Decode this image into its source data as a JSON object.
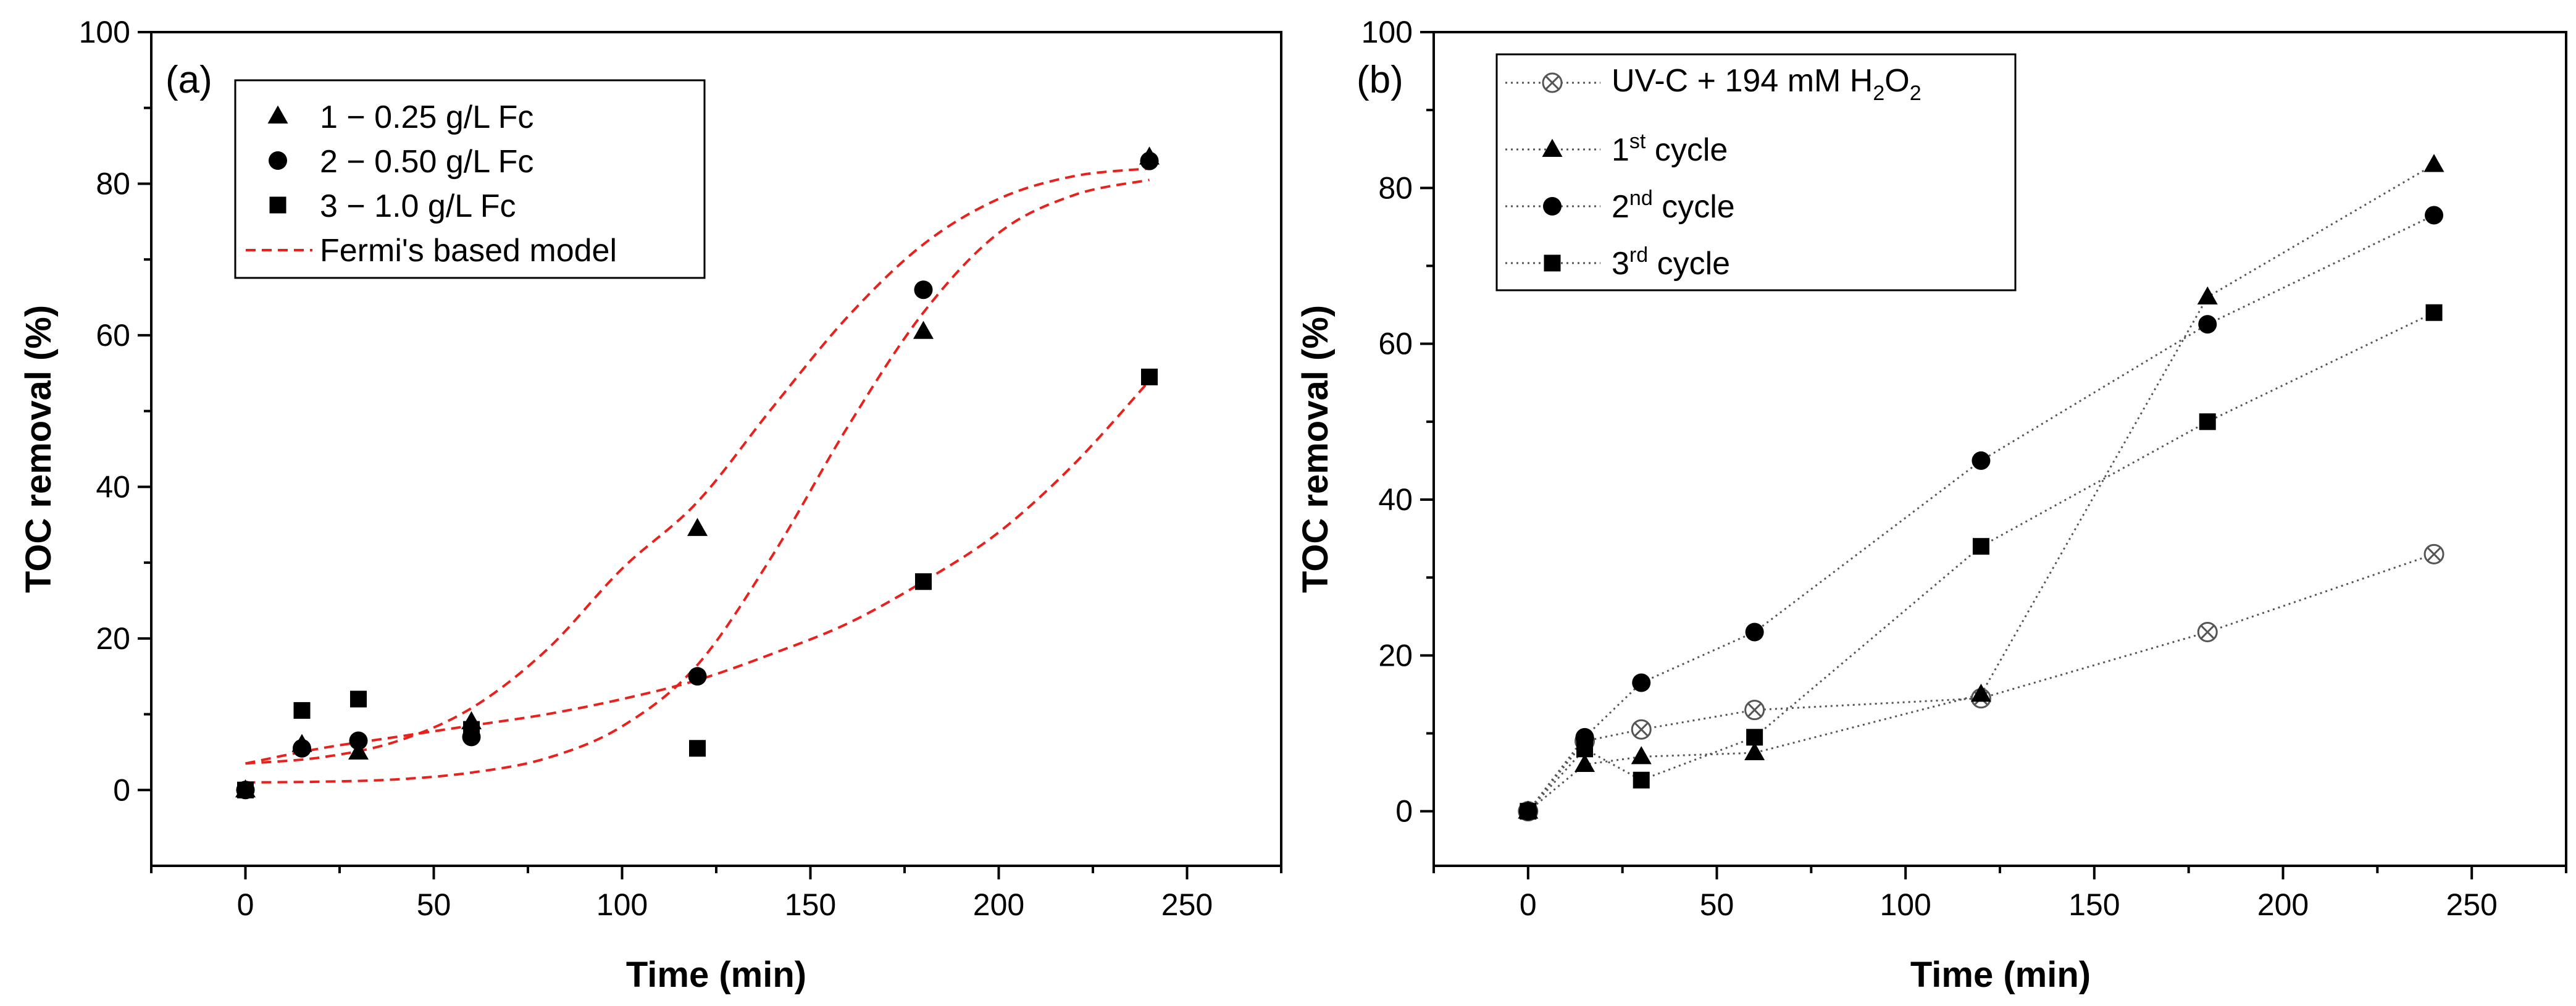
{
  "chart_data": [
    {
      "type": "scatter",
      "panel_label": "(a)",
      "xlabel": "Time (min)",
      "ylabel": "TOC removal (%)",
      "xlim": [
        -25,
        275
      ],
      "ylim": [
        -10,
        100
      ],
      "xticks": [
        0,
        50,
        100,
        150,
        200,
        250
      ],
      "yticks": [
        0,
        20,
        40,
        60,
        80,
        100
      ],
      "legend_position": "top-left",
      "series": [
        {
          "name": "1 − 0.25 g/L Fc",
          "marker": "triangle",
          "x": [
            0,
            15,
            30,
            60,
            120,
            180,
            240
          ],
          "y": [
            0,
            6,
            5,
            9,
            34.5,
            60.5,
            83.5
          ]
        },
        {
          "name": "2 − 0.50 g/L Fc",
          "marker": "circle",
          "x": [
            0,
            15,
            30,
            60,
            120,
            180,
            240
          ],
          "y": [
            0,
            5.5,
            6.5,
            7,
            15,
            66,
            83
          ]
        },
        {
          "name": "3 − 1.0 g/L Fc",
          "marker": "square",
          "x": [
            0,
            15,
            30,
            60,
            120,
            180,
            240
          ],
          "y": [
            0,
            10.5,
            12,
            8,
            5.5,
            27.5,
            54.5
          ]
        }
      ],
      "fits": [
        {
          "name": "Fermi's based model",
          "color": "#e8211d",
          "style": "dashed",
          "x": [
            0,
            20,
            40,
            60,
            80,
            100,
            120,
            140,
            160,
            180,
            200,
            220,
            240
          ],
          "curves": [
            [
              3.5,
              4.3,
              6.4,
              10.8,
              18.5,
              29.2,
              38.0,
              50.5,
              62.5,
              72.0,
              78.0,
              81.0,
              82.0
            ],
            [
              1.0,
              1.1,
              1.4,
              2.3,
              4.2,
              8.4,
              16.5,
              31.0,
              48.0,
              63.0,
              73.5,
              78.5,
              80.5
            ],
            [
              3.5,
              5.5,
              7.0,
              8.5,
              10.0,
              12.0,
              14.5,
              18.0,
              22.0,
              27.5,
              34.0,
              43.0,
              54.0
            ]
          ]
        }
      ]
    },
    {
      "type": "line",
      "panel_label": "(b)",
      "xlabel": "Time (min)",
      "ylabel": "TOC removal (%)",
      "xlim": [
        -25,
        275
      ],
      "ylim": [
        -7,
        100
      ],
      "xticks": [
        0,
        50,
        100,
        150,
        200,
        250
      ],
      "yticks": [
        0,
        20,
        40,
        60,
        80,
        100
      ],
      "legend_position": "top-left",
      "series": [
        {
          "name": "UV-C + 194 mM H2O2",
          "legend_main": "UV-C + 194 mM H",
          "legend_sub1": "2",
          "legend_mid": "O",
          "legend_sub2": "2",
          "marker": "crossed-circle",
          "x": [
            0,
            15,
            30,
            60,
            120,
            180,
            240
          ],
          "y": [
            0,
            9,
            10.5,
            13,
            14.5,
            23,
            33
          ]
        },
        {
          "name": "1st cycle",
          "legend_main": "1",
          "legend_sup": "st",
          "legend_rest": " cycle",
          "marker": "triangle",
          "x": [
            0,
            15,
            30,
            60,
            120,
            180,
            240
          ],
          "y": [
            0,
            6,
            7,
            7.5,
            15,
            66,
            83
          ]
        },
        {
          "name": "2nd cycle",
          "legend_main": "2",
          "legend_sup": "nd",
          "legend_rest": " cycle",
          "marker": "circle",
          "x": [
            0,
            15,
            30,
            60,
            120,
            180,
            240
          ],
          "y": [
            0,
            9.5,
            16.5,
            23,
            45,
            62.5,
            76.5
          ]
        },
        {
          "name": "3rd cycle",
          "legend_main": "3",
          "legend_sup": "rd",
          "legend_rest": " cycle",
          "marker": "square",
          "x": [
            0,
            15,
            30,
            60,
            120,
            180,
            240
          ],
          "y": [
            0,
            8,
            4,
            9.5,
            34,
            50,
            64
          ]
        }
      ]
    }
  ]
}
